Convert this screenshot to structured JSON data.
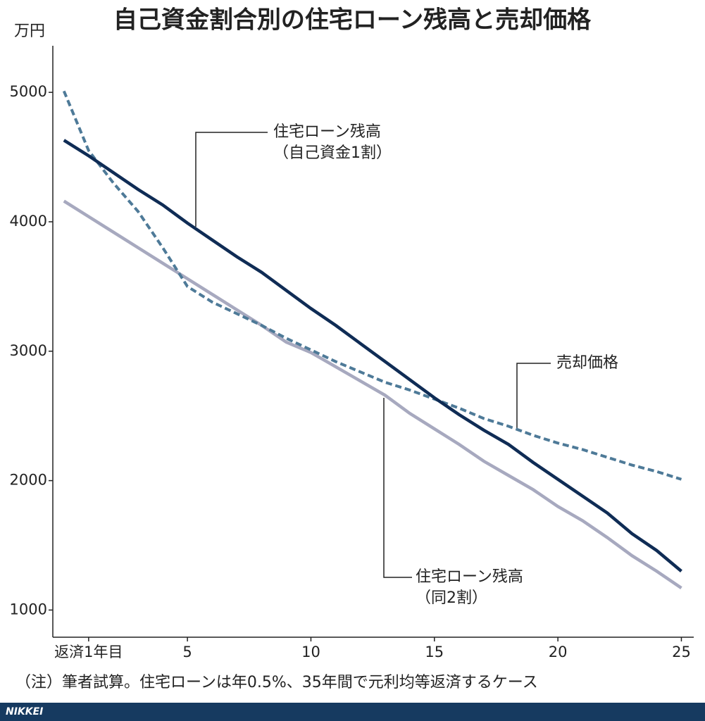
{
  "chart_data": {
    "type": "line",
    "title": "自己資金割合別の住宅ローン残高と売却価格",
    "y_unit": "万円",
    "x": [
      0,
      1,
      2,
      3,
      4,
      5,
      6,
      7,
      8,
      9,
      10,
      11,
      12,
      13,
      14,
      15,
      16,
      17,
      18,
      19,
      20,
      21,
      22,
      23,
      24,
      25
    ],
    "xlim": [
      -0.45,
      25.5
    ],
    "xticks": [
      {
        "value": 1,
        "label": "返済1年目"
      },
      5,
      10,
      15,
      20,
      25
    ],
    "ylim": [
      790,
      5360
    ],
    "yticks": [
      1000,
      2000,
      3000,
      4000,
      5000
    ],
    "series": [
      {
        "name": "住宅ローン残高（同2割）",
        "color": "#a7a9bf",
        "dash": false,
        "values": [
          4160,
          4040,
          3920,
          3800,
          3680,
          3560,
          3440,
          3320,
          3200,
          3070,
          2990,
          2880,
          2770,
          2660,
          2520,
          2400,
          2280,
          2150,
          2040,
          1930,
          1800,
          1690,
          1560,
          1420,
          1300,
          1170
        ]
      },
      {
        "name": "売却価格",
        "color": "#4e7a98",
        "dash": true,
        "values": [
          5010,
          4550,
          4300,
          4080,
          3800,
          3500,
          3380,
          3290,
          3200,
          3100,
          3010,
          2920,
          2840,
          2760,
          2700,
          2630,
          2560,
          2480,
          2420,
          2350,
          2290,
          2240,
          2180,
          2120,
          2070,
          2010
        ]
      },
      {
        "name": "住宅ローン残高（自己資金1割）",
        "color": "#0f2c55",
        "dash": false,
        "values": [
          4630,
          4510,
          4380,
          4250,
          4130,
          3990,
          3860,
          3730,
          3610,
          3470,
          3330,
          3200,
          3060,
          2920,
          2780,
          2640,
          2510,
          2390,
          2280,
          2140,
          2010,
          1880,
          1750,
          1590,
          1460,
          1300
        ]
      }
    ],
    "annotations": [
      [
        "住宅ローン残高",
        "（自己資金1割）"
      ],
      [
        "売却価格"
      ],
      [
        "住宅ローン残高",
        "（同2割）"
      ]
    ],
    "note": "（注）筆者試算。住宅ローンは年0.5%、35年間で元利均等返済するケース",
    "source": "NIKKEI"
  }
}
